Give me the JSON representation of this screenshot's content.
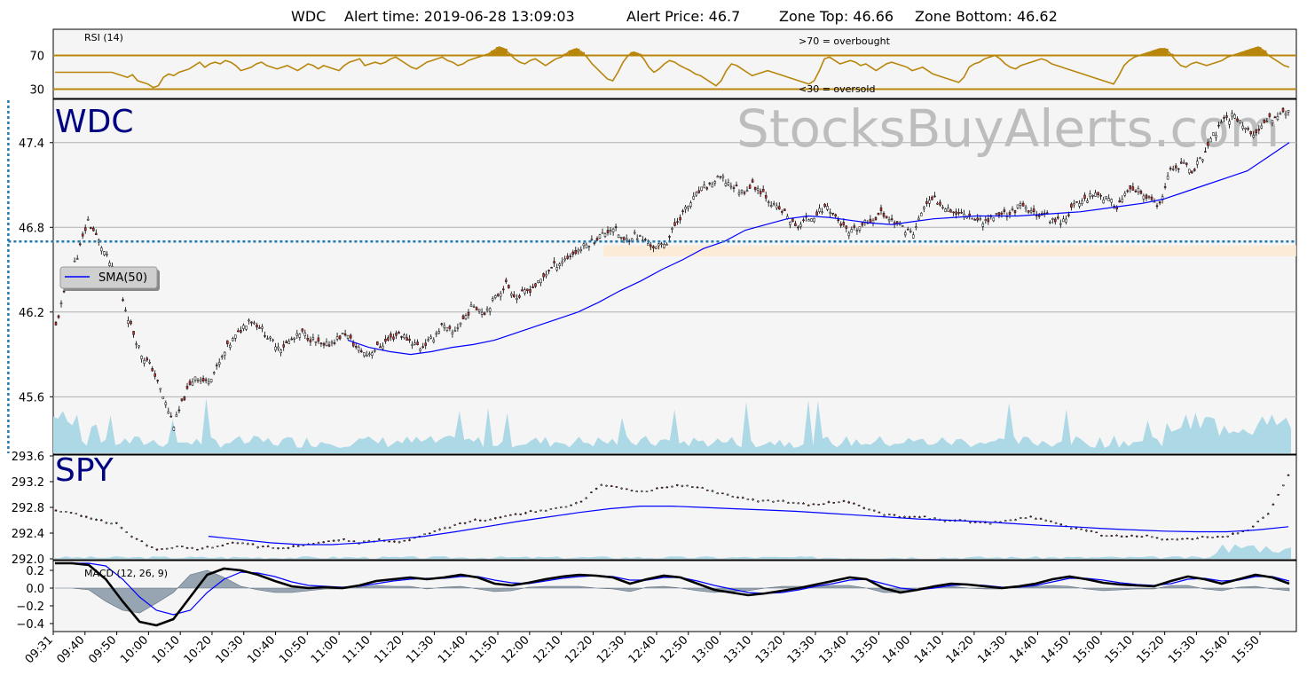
{
  "title": {
    "symbol": "WDC",
    "alert_time": "Alert time: 2019-06-28 13:09:03",
    "alert_price": "Alert Price: 46.7",
    "zone_top": "Zone Top: 46.66",
    "zone_bottom": "Zone Bottom: 46.62"
  },
  "watermark": "StocksBuyAlerts.com",
  "colors": {
    "rsi": "#b8860b",
    "sma": "#0000ff",
    "volume": "#add8e6",
    "ticker": "#000080",
    "alert_line": "#1f77b4",
    "zone": "#fde9d0",
    "macd_hist": "#778899",
    "panel_bg": "#f5f5f5"
  },
  "chart_data": [
    {
      "type": "line",
      "panel": "rsi",
      "label": "RSI (14)",
      "yticks": [
        "70",
        "30"
      ],
      "ylim": [
        20,
        100
      ],
      "levels": [
        70,
        30
      ],
      "annotations": [
        ">70 = overbought",
        "<30 = oversold"
      ],
      "series": [
        {
          "name": "RSI (14)",
          "values": [
            50,
            50,
            50,
            50,
            50,
            50,
            50,
            50,
            50,
            50,
            50,
            50,
            48,
            46,
            44,
            47,
            40,
            38,
            36,
            32,
            34,
            44,
            48,
            46,
            50,
            52,
            54,
            58,
            62,
            56,
            60,
            62,
            60,
            64,
            62,
            58,
            52,
            54,
            56,
            60,
            62,
            58,
            56,
            54,
            56,
            58,
            55,
            52,
            56,
            60,
            58,
            54,
            58,
            56,
            54,
            52,
            58,
            62,
            64,
            66,
            58,
            60,
            62,
            60,
            62,
            66,
            68,
            64,
            60,
            56,
            54,
            58,
            62,
            64,
            66,
            68,
            64,
            62,
            58,
            60,
            64,
            66,
            68,
            70,
            72,
            76,
            80,
            78,
            72,
            66,
            62,
            60,
            64,
            66,
            62,
            58,
            62,
            66,
            68,
            72,
            76,
            78,
            74,
            68,
            60,
            54,
            48,
            42,
            40,
            50,
            62,
            70,
            74,
            72,
            66,
            56,
            50,
            54,
            60,
            64,
            62,
            58,
            55,
            52,
            48,
            46,
            42,
            38,
            34,
            40,
            52,
            60,
            58,
            54,
            50,
            46,
            48,
            50,
            52,
            50,
            48,
            46,
            44,
            42,
            40,
            38,
            36,
            40,
            52,
            66,
            68,
            64,
            60,
            62,
            64,
            62,
            58,
            60,
            56,
            52,
            56,
            60,
            62,
            60,
            58,
            56,
            52,
            54,
            56,
            52,
            48,
            46,
            44,
            42,
            40,
            38,
            44,
            56,
            60,
            62,
            66,
            68,
            70,
            66,
            60,
            56,
            54,
            58,
            60,
            62,
            64,
            66,
            64,
            60,
            58,
            56,
            54,
            52,
            50,
            48,
            46,
            44,
            42,
            40,
            38,
            36,
            46,
            58,
            64,
            68,
            70,
            72,
            74,
            76,
            78,
            78,
            72,
            64,
            58,
            56,
            60,
            62,
            60,
            58,
            60,
            62,
            64,
            68,
            70,
            72,
            74,
            76,
            78,
            80,
            76,
            70,
            66,
            62,
            58,
            56
          ]
        }
      ]
    },
    {
      "type": "candlestick",
      "panel": "price",
      "ticker": "WDC",
      "yticks": [
        "47.4",
        "46.8",
        "46.2",
        "45.6"
      ],
      "ylim": [
        45.2,
        47.7
      ],
      "alert_price": 46.7,
      "alert_time": "13:09",
      "zone": [
        46.62,
        46.66
      ],
      "legend": "SMA(50)",
      "series": [
        {
          "name": "price",
          "values": [
            46.1,
            46.4,
            46.6,
            46.85,
            46.7,
            46.55,
            46.35,
            46.1,
            45.9,
            45.8,
            45.6,
            45.4,
            45.6,
            45.75,
            45.7,
            45.8,
            45.95,
            46.05,
            46.15,
            46.1,
            46.0,
            45.95,
            46.0,
            46.05,
            46.0,
            45.95,
            46.0,
            46.05,
            45.95,
            45.9,
            45.95,
            46.0,
            46.05,
            46.0,
            45.95,
            46.0,
            46.1,
            46.05,
            46.15,
            46.25,
            46.2,
            46.3,
            46.4,
            46.3,
            46.35,
            46.4,
            46.5,
            46.55,
            46.6,
            46.65,
            46.7,
            46.75,
            46.8,
            46.7,
            46.75,
            46.7,
            46.65,
            46.7,
            46.85,
            46.95,
            47.05,
            47.1,
            47.15,
            47.1,
            47.05,
            47.1,
            47.05,
            46.95,
            46.9,
            46.8,
            46.85,
            46.9,
            46.95,
            46.85,
            46.75,
            46.8,
            46.85,
            46.9,
            46.85,
            46.8,
            46.75,
            46.95,
            47.0,
            46.95,
            46.9,
            46.9,
            46.85,
            46.85,
            46.9,
            46.9,
            46.95,
            46.9,
            46.9,
            46.85,
            46.85,
            46.95,
            47.0,
            47.05,
            47.0,
            46.95,
            47.05,
            47.05,
            47.0,
            46.95,
            47.2,
            47.25,
            47.2,
            47.3,
            47.45,
            47.55,
            47.6,
            47.5,
            47.45,
            47.55,
            47.6,
            47.62
          ]
        },
        {
          "name": "SMA(50)",
          "values": [
            null,
            null,
            null,
            null,
            null,
            null,
            null,
            null,
            null,
            null,
            null,
            null,
            null,
            null,
            46.0,
            45.95,
            45.92,
            45.9,
            45.92,
            45.95,
            45.97,
            46.0,
            46.05,
            46.1,
            46.15,
            46.2,
            46.27,
            46.35,
            46.42,
            46.5,
            46.57,
            46.65,
            46.7,
            46.78,
            46.82,
            46.86,
            46.88,
            46.87,
            46.85,
            46.83,
            46.82,
            46.84,
            46.86,
            46.87,
            46.88,
            46.88,
            46.88,
            46.89,
            46.9,
            46.91,
            46.93,
            46.95,
            46.97,
            47.0,
            47.05,
            47.1,
            47.15,
            47.2,
            47.3,
            47.4
          ]
        }
      ],
      "volume_peaks": "spikes near 09:31, 10:30, 10:40, 15:40-15:55"
    },
    {
      "type": "candlestick",
      "panel": "spy",
      "ticker": "SPY",
      "yticks": [
        "293.6",
        "293.2",
        "292.8",
        "292.4",
        "292.0"
      ],
      "ylim": [
        292.0,
        293.6
      ],
      "series": [
        {
          "name": "price",
          "values": [
            292.75,
            292.7,
            292.6,
            292.55,
            292.3,
            292.15,
            292.2,
            292.15,
            292.2,
            292.25,
            292.2,
            292.15,
            292.2,
            292.25,
            292.3,
            292.25,
            292.3,
            292.25,
            292.35,
            292.45,
            292.55,
            292.6,
            292.65,
            292.7,
            292.75,
            292.8,
            292.9,
            293.15,
            293.1,
            293.05,
            293.1,
            293.15,
            293.1,
            293.0,
            292.95,
            292.9,
            292.9,
            292.85,
            292.85,
            292.9,
            292.8,
            292.7,
            292.65,
            292.65,
            292.6,
            292.6,
            292.55,
            292.6,
            292.65,
            292.6,
            292.5,
            292.45,
            292.35,
            292.35,
            292.35,
            292.3,
            292.3,
            292.35,
            292.35,
            292.45,
            292.7,
            293.3
          ]
        },
        {
          "name": "SMA(50)",
          "values": [
            null,
            null,
            null,
            null,
            null,
            null,
            null,
            null,
            292.35,
            292.3,
            292.25,
            292.22,
            292.22,
            292.25,
            292.3,
            292.35,
            292.42,
            292.5,
            292.58,
            292.65,
            292.72,
            292.78,
            292.82,
            292.82,
            292.8,
            292.78,
            292.76,
            292.74,
            292.71,
            292.68,
            292.65,
            292.62,
            292.6,
            292.58,
            292.55,
            292.52,
            292.5,
            292.47,
            292.45,
            292.43,
            292.42,
            292.42,
            292.45,
            292.5
          ]
        }
      ]
    },
    {
      "type": "line",
      "panel": "macd",
      "label": "MACD (12, 26, 9)",
      "yticks": [
        "0.2",
        "0.0",
        "−0.2",
        "−0.4"
      ],
      "ylim": [
        -0.48,
        0.3
      ],
      "series": [
        {
          "name": "MACD",
          "values": [
            0.28,
            0.28,
            0.26,
            0.1,
            -0.15,
            -0.38,
            -0.42,
            -0.35,
            -0.1,
            0.15,
            0.22,
            0.2,
            0.15,
            0.08,
            0.02,
            0.0,
            0.01,
            0.0,
            0.03,
            0.08,
            0.1,
            0.12,
            0.1,
            0.12,
            0.15,
            0.12,
            0.05,
            0.03,
            0.06,
            0.1,
            0.13,
            0.15,
            0.14,
            0.12,
            0.05,
            0.1,
            0.14,
            0.12,
            0.05,
            -0.02,
            -0.05,
            -0.08,
            -0.06,
            -0.03,
            0.0,
            0.04,
            0.08,
            0.12,
            0.1,
            0.0,
            -0.05,
            -0.02,
            0.02,
            0.05,
            0.04,
            0.02,
            0.0,
            0.02,
            0.05,
            0.1,
            0.13,
            0.1,
            0.06,
            0.04,
            0.03,
            0.02,
            0.08,
            0.13,
            0.1,
            0.05,
            0.1,
            0.15,
            0.12,
            0.05
          ]
        },
        {
          "name": "Signal",
          "values": [
            0.28,
            0.28,
            0.28,
            0.25,
            0.1,
            -0.1,
            -0.25,
            -0.3,
            -0.25,
            -0.05,
            0.1,
            0.18,
            0.17,
            0.13,
            0.07,
            0.03,
            0.02,
            0.01,
            0.02,
            0.05,
            0.08,
            0.1,
            0.11,
            0.11,
            0.13,
            0.13,
            0.09,
            0.06,
            0.05,
            0.08,
            0.11,
            0.13,
            0.14,
            0.13,
            0.09,
            0.09,
            0.12,
            0.12,
            0.08,
            0.03,
            -0.01,
            -0.05,
            -0.06,
            -0.05,
            -0.02,
            0.02,
            0.05,
            0.09,
            0.1,
            0.05,
            0.0,
            -0.02,
            0.0,
            0.03,
            0.04,
            0.03,
            0.01,
            0.01,
            0.03,
            0.07,
            0.11,
            0.11,
            0.09,
            0.06,
            0.04,
            0.03,
            0.05,
            0.1,
            0.11,
            0.08,
            0.09,
            0.13,
            0.13,
            0.08
          ]
        }
      ]
    }
  ],
  "x_axis": {
    "ticks": [
      "09:31",
      "09:40",
      "09:50",
      "10:00",
      "10:10",
      "10:20",
      "10:30",
      "10:40",
      "10:50",
      "11:00",
      "11:10",
      "11:20",
      "11:30",
      "11:40",
      "11:50",
      "12:00",
      "12:10",
      "12:20",
      "12:30",
      "12:40",
      "12:50",
      "13:00",
      "13:10",
      "13:20",
      "13:30",
      "13:40",
      "13:50",
      "14:00",
      "14:10",
      "14:20",
      "14:30",
      "14:40",
      "14:50",
      "15:00",
      "15:10",
      "15:20",
      "15:30",
      "15:40",
      "15:50"
    ]
  }
}
